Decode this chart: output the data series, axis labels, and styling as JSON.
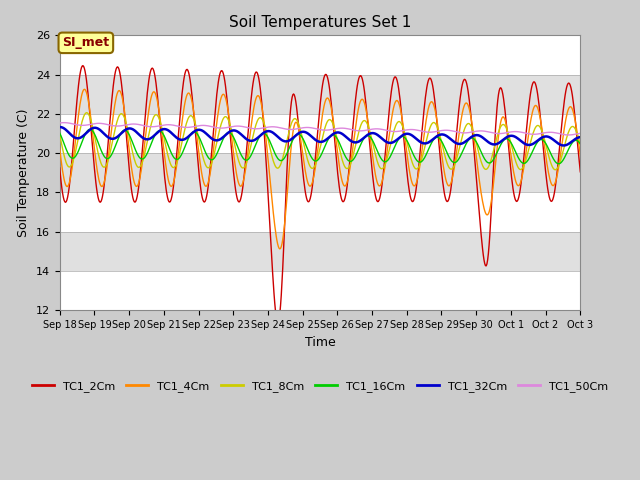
{
  "title": "Soil Temperatures Set 1",
  "xlabel": "Time",
  "ylabel": "Soil Temperature (C)",
  "ylim": [
    12,
    26
  ],
  "yticks": [
    12,
    14,
    16,
    18,
    20,
    22,
    24,
    26
  ],
  "series": {
    "TC1_2Cm": {
      "color": "#cc0000",
      "lw": 1.0
    },
    "TC1_4Cm": {
      "color": "#ff8800",
      "lw": 1.0
    },
    "TC1_8Cm": {
      "color": "#cccc00",
      "lw": 1.0
    },
    "TC1_16Cm": {
      "color": "#00cc00",
      "lw": 1.0
    },
    "TC1_32Cm": {
      "color": "#0000cc",
      "lw": 1.8
    },
    "TC1_50Cm": {
      "color": "#dd88dd",
      "lw": 1.0
    }
  },
  "annotation_text": "SI_met",
  "annotation_color": "#880000",
  "annotation_bg": "#ffff99",
  "annotation_border": "#886600",
  "xtick_labels": [
    "Sep 18",
    "Sep 19",
    "Sep 20",
    "Sep 21",
    "Sep 22",
    "Sep 23",
    "Sep 24",
    "Sep 25",
    "Sep 26",
    "Sep 27",
    "Sep 28",
    "Sep 29",
    "Sep 30",
    "Oct 1",
    "Oct 2",
    "Oct 3"
  ],
  "band_colors": [
    "#ffffff",
    "#e0e0e0"
  ],
  "fig_bg": "#cccccc"
}
